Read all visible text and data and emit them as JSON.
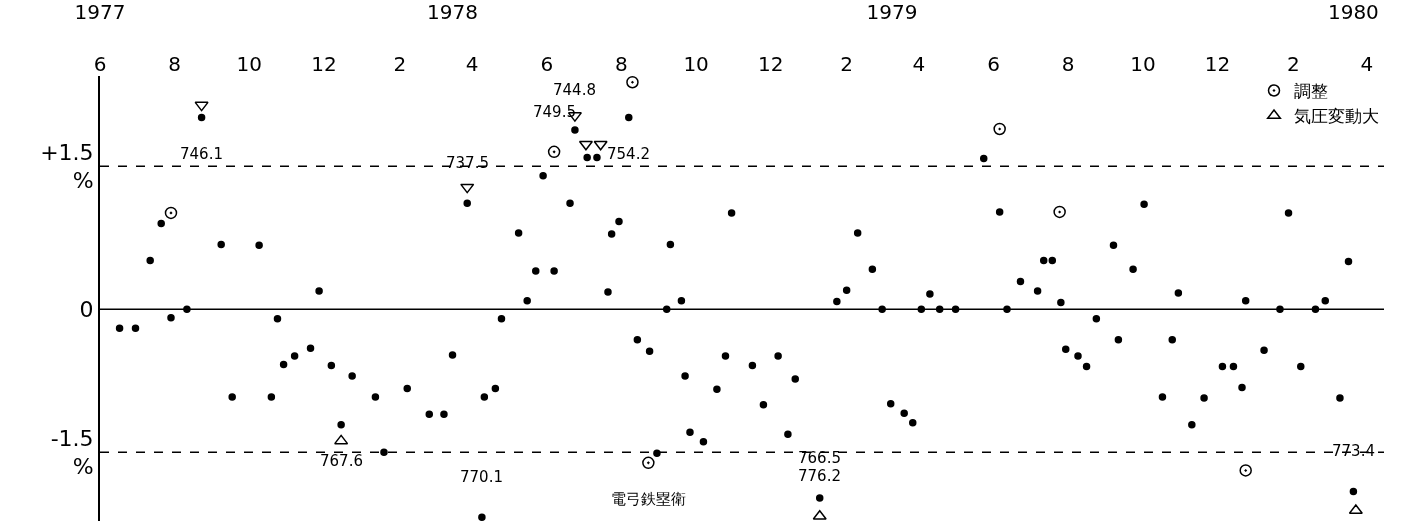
{
  "chart_data": {
    "type": "scatter",
    "xlim": [
      "1977-06-01",
      "1980-04-15"
    ],
    "xticks": [
      {
        "value": "1977-06-01",
        "label": "6"
      },
      {
        "value": "1977-08-01",
        "label": "8"
      },
      {
        "value": "1977-10-01",
        "label": "10"
      },
      {
        "value": "1977-12-01",
        "label": "12"
      },
      {
        "value": "1978-02-01",
        "label": "2"
      },
      {
        "value": "1978-04-01",
        "label": "4"
      },
      {
        "value": "1978-06-01",
        "label": "6"
      },
      {
        "value": "1978-08-01",
        "label": "8"
      },
      {
        "value": "1978-10-01",
        "label": "10"
      },
      {
        "value": "1978-12-01",
        "label": "12"
      },
      {
        "value": "1979-02-01",
        "label": "2"
      },
      {
        "value": "1979-04-01",
        "label": "4"
      },
      {
        "value": "1979-06-01",
        "label": "6"
      },
      {
        "value": "1979-08-01",
        "label": "8"
      },
      {
        "value": "1979-10-01",
        "label": "10"
      },
      {
        "value": "1979-12-01",
        "label": "12"
      },
      {
        "value": "1980-02-01",
        "label": "2"
      },
      {
        "value": "1980-04-01",
        "label": "4"
      }
    ],
    "x2lim": [
      "1977-06-01",
      "1980-04-15"
    ],
    "x2ticks": [
      {
        "value": "1977-06-01",
        "label": "1977"
      },
      {
        "value": "1978-03-16",
        "label": "1978"
      },
      {
        "value": "1979-03-10",
        "label": "1979"
      },
      {
        "value": "1980-03-21",
        "label": "1980"
      }
    ],
    "ylim": [
      -2.22,
      2.45
    ],
    "yticks": [
      {
        "value": 1.5,
        "label": "+1.5\n%"
      },
      0,
      {
        "value": -1.5,
        "label": "-1.5\n%"
      }
    ],
    "legend": "top right",
    "ref_lines": [
      {
        "axis": "y",
        "value": 1.5,
        "line_style": "dashed",
        "color": "#000000"
      },
      {
        "axis": "y",
        "value": 0,
        "line_style": "solid",
        "color": "#000000"
      },
      {
        "axis": "y",
        "value": -1.5,
        "line_style": "dashed",
        "color": "#000000"
      }
    ],
    "series": [
      {
        "color": "#000000",
        "marker": "circle",
        "x": [
          "1977-06-17",
          "1977-06-30",
          "1977-07-12",
          "1977-07-21",
          "1977-07-29",
          "1977-08-11",
          "1977-08-23",
          "1977-09-08",
          "1977-09-17",
          "1977-10-09",
          "1977-10-19",
          "1977-10-24",
          "1977-10-29",
          "1977-11-07",
          "1977-11-20",
          "1977-11-27",
          "1977-12-07",
          "1977-12-15",
          "1977-12-24",
          "1978-01-12",
          "1978-01-19",
          "1978-02-07",
          "1978-02-25",
          "1978-03-09",
          "1978-03-16",
          "1978-03-28",
          "1978-04-09",
          "1978-04-11",
          "1978-04-20",
          "1978-04-25",
          "1978-05-09",
          "1978-05-16",
          "1978-05-23",
          "1978-05-29",
          "1978-06-07",
          "1978-06-20",
          "1978-06-24",
          "1978-07-04",
          "1978-07-12",
          "1978-07-21",
          "1978-07-24",
          "1978-07-30",
          "1978-08-07",
          "1978-08-14",
          "1978-08-24",
          "1978-08-30",
          "1978-09-07",
          "1978-09-10",
          "1978-09-19",
          "1978-09-22",
          "1978-09-26",
          "1978-10-07",
          "1978-10-18",
          "1978-10-25",
          "1978-10-30",
          "1978-11-16",
          "1978-11-25",
          "1978-12-07",
          "1978-12-15",
          "1978-12-21",
          "1979-01-10",
          "1979-01-24",
          "1979-02-01",
          "1979-02-10",
          "1979-02-22",
          "1979-03-02",
          "1979-03-09",
          "1979-03-20",
          "1979-03-27",
          "1979-04-03",
          "1979-04-10",
          "1979-04-18",
          "1979-05-01",
          "1979-05-24",
          "1979-06-06",
          "1979-06-12",
          "1979-06-23",
          "1979-07-07",
          "1979-07-12",
          "1979-07-19",
          "1979-07-26",
          "1979-07-30",
          "1979-08-09",
          "1979-08-16",
          "1979-08-24",
          "1979-09-07",
          "1979-09-11",
          "1979-09-23",
          "1979-10-02",
          "1979-10-17",
          "1979-10-25",
          "1979-10-30",
          "1979-11-10",
          "1979-11-20",
          "1979-12-05",
          "1979-12-14",
          "1979-12-21",
          "1979-12-24",
          "1980-01-08",
          "1980-01-21",
          "1980-01-28",
          "1980-02-07",
          "1980-02-19",
          "1980-02-27",
          "1980-03-10",
          "1980-03-17",
          "1980-03-21"
        ],
        "values": [
          -0.2,
          -0.2,
          0.51,
          0.9,
          -0.09,
          0.0,
          2.01,
          0.68,
          -0.92,
          0.67,
          -0.92,
          -0.1,
          -0.58,
          -0.49,
          -0.41,
          0.19,
          -0.59,
          -1.21,
          -0.7,
          -0.92,
          -1.5,
          -0.83,
          -1.1,
          -1.1,
          -0.48,
          1.11,
          -2.18,
          -0.92,
          -0.83,
          -0.1,
          0.8,
          0.09,
          0.4,
          1.4,
          0.4,
          1.11,
          1.88,
          1.59,
          1.59,
          0.18,
          0.79,
          0.92,
          2.01,
          -0.32,
          -0.44,
          -1.51,
          0.0,
          0.68,
          0.09,
          -0.7,
          -1.29,
          -1.39,
          -0.84,
          -0.49,
          1.01,
          -0.59,
          -1.0,
          -0.49,
          -1.31,
          -0.73,
          -1.98,
          0.08,
          0.2,
          0.8,
          0.42,
          0.0,
          -0.99,
          -1.09,
          -1.19,
          0.0,
          0.16,
          0.0,
          0.0,
          1.58,
          1.02,
          0.0,
          0.29,
          0.19,
          0.51,
          0.51,
          0.07,
          -0.42,
          -0.49,
          -0.6,
          -0.1,
          0.67,
          -0.32,
          0.42,
          1.1,
          -0.92,
          -0.32,
          0.17,
          -1.21,
          -0.93,
          -0.6,
          -0.6,
          -0.82,
          0.09,
          -0.43,
          0.0,
          1.01,
          -0.6,
          0.0,
          0.09,
          -0.93,
          0.5,
          -1.91
        ]
      },
      {
        "name": "調整",
        "color": "#000000",
        "marker": "circle-dot",
        "x": [
          "1977-07-29",
          "1978-06-07",
          "1978-08-10",
          "1978-08-23",
          "1979-06-06",
          "1979-07-25",
          "1979-12-24"
        ],
        "values": [
          1.01,
          1.65,
          2.38,
          -1.61,
          1.89,
          1.02,
          -1.69
        ]
      },
      {
        "name": "気圧変動大",
        "color": "#000000",
        "marker": "triangle",
        "x": [
          "1977-12-15",
          "1979-01-10",
          "1980-03-23"
        ],
        "values": [
          -1.38,
          -2.17,
          -2.11
        ]
      },
      {
        "color": "#000000",
        "marker": "triangle-down",
        "x": [
          "1977-08-23",
          "1978-03-28",
          "1978-06-24",
          "1978-07-03",
          "1978-07-15"
        ],
        "values": [
          2.14,
          1.28,
          2.03,
          1.73,
          1.73
        ]
      }
    ],
    "annotations": [
      {
        "text": "746.1",
        "x": "1977-08-23",
        "y": 2.01
      },
      {
        "text": "767.6",
        "x": "1977-12-15",
        "y": -1.21
      },
      {
        "text": "737.5",
        "x": "1978-03-28",
        "y": 1.11
      },
      {
        "text": "770.1",
        "x": "1978-04-09",
        "y": -2.18
      },
      {
        "text": "744.8",
        "x": "1978-06-24",
        "y": 1.88
      },
      {
        "text": "749.5",
        "x": "1978-06-07",
        "y": 1.65
      },
      {
        "text": "754.2",
        "x": "1978-08-07",
        "y": 2.01
      },
      {
        "text": "電弓鉄塁衛",
        "x": "1978-08-23",
        "y": -1.61
      },
      {
        "text": "766.5",
        "x": "1979-01-10",
        "y": -1.98
      },
      {
        "text": "776.2",
        "x": "1979-01-10",
        "y": -2.17
      },
      {
        "text": "773.4",
        "x": "1980-03-21",
        "y": -1.91
      }
    ]
  }
}
